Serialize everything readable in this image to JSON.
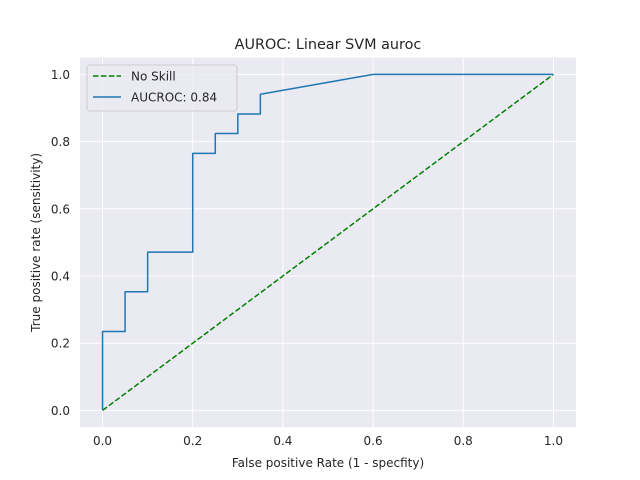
{
  "chart_data": {
    "type": "line",
    "title": "AUROC: Linear SVM auroc",
    "xlabel": "False positive Rate (1 - specfity)",
    "ylabel": "True positive rate (sensitivity)",
    "xlim": [
      -0.05,
      1.05
    ],
    "ylim": [
      -0.05,
      1.05
    ],
    "xticks": [
      0.0,
      0.2,
      0.4,
      0.6,
      0.8,
      1.0
    ],
    "yticks": [
      0.0,
      0.2,
      0.4,
      0.6,
      0.8,
      1.0
    ],
    "xtick_labels": [
      "0.0",
      "0.2",
      "0.4",
      "0.6",
      "0.8",
      "1.0"
    ],
    "ytick_labels": [
      "0.0",
      "0.2",
      "0.4",
      "0.6",
      "0.8",
      "1.0"
    ],
    "grid": true,
    "legend_position": "top-left",
    "series": [
      {
        "name": "No Skill",
        "color": "#008000",
        "dashed": true,
        "x": [
          0.0,
          1.0
        ],
        "y": [
          0.0,
          1.0
        ]
      },
      {
        "name": "AUCROC: 0.84",
        "color": "#1f77b4",
        "dashed": false,
        "x": [
          0.0,
          0.0,
          0.05,
          0.05,
          0.1,
          0.1,
          0.2,
          0.2,
          0.25,
          0.25,
          0.3,
          0.3,
          0.35,
          0.35,
          0.6,
          1.0
        ],
        "y": [
          0.0,
          0.235,
          0.235,
          0.353,
          0.353,
          0.471,
          0.471,
          0.765,
          0.765,
          0.824,
          0.824,
          0.882,
          0.882,
          0.941,
          1.0,
          1.0
        ]
      }
    ]
  }
}
